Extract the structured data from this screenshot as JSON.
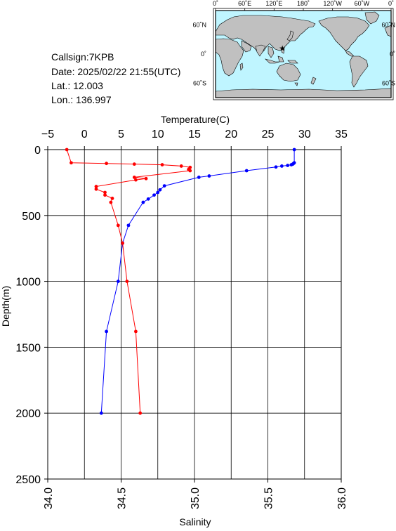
{
  "station": {
    "callsign_line": "Callsign:7KPB",
    "date_line": "Date:  2025/02/22 21:55(UTC)",
    "lat_line": "Lat.:   12.003",
    "lon_line": "Lon.:  136.997"
  },
  "map": {
    "lon_labels": [
      "0˚",
      "60˚E",
      "120˚E",
      "180˚",
      "120˚W",
      "60˚W",
      "0˚"
    ],
    "lat_labels": [
      "60˚N",
      "0˚",
      "60˚S"
    ],
    "marker": {
      "lon": 137.0,
      "lat": 12.0,
      "symbol": "★",
      "color": "#ff0000"
    },
    "ocean_color": "#bff5ff",
    "land_color": "#c0c0c0"
  },
  "chart_data": {
    "type": "line",
    "ylabel": "Depth(m)",
    "y_range": [
      0,
      2500
    ],
    "y_inverted": true,
    "y_ticks": [
      0,
      500,
      1000,
      1500,
      2000,
      2500
    ],
    "grid": true,
    "top_axis": {
      "label": "Temperature(C)",
      "range": [
        -5,
        35
      ],
      "ticks": [
        -5,
        0,
        5,
        10,
        15,
        20,
        25,
        30,
        35
      ]
    },
    "bottom_axis": {
      "label": "Salinity",
      "range": [
        34.0,
        36.0
      ],
      "ticks": [
        "34.0",
        "34.5",
        "35.0",
        "35.5",
        "36.0"
      ]
    },
    "series": [
      {
        "axis": "temperature",
        "color": "#0000ff",
        "points": [
          [
            28.6,
            0
          ],
          [
            28.6,
            100
          ],
          [
            28.5,
            105
          ],
          [
            28.4,
            110
          ],
          [
            28.2,
            115
          ],
          [
            27.7,
            120
          ],
          [
            26.9,
            125
          ],
          [
            26.1,
            132
          ],
          [
            22.1,
            160
          ],
          [
            17.0,
            200
          ],
          [
            15.6,
            210
          ],
          [
            10.9,
            275
          ],
          [
            10.3,
            305
          ],
          [
            10.0,
            325
          ],
          [
            9.5,
            345
          ],
          [
            8.7,
            375
          ],
          [
            8.0,
            400
          ],
          [
            6.0,
            575
          ],
          [
            5.2,
            710
          ],
          [
            4.6,
            1000
          ],
          [
            3.0,
            1380
          ],
          [
            2.3,
            2000
          ]
        ]
      },
      {
        "axis": "salinity",
        "color": "#ff0000",
        "points": [
          [
            34.13,
            0
          ],
          [
            34.16,
            100
          ],
          [
            34.4,
            105
          ],
          [
            34.59,
            110
          ],
          [
            34.78,
            115
          ],
          [
            34.91,
            125
          ],
          [
            34.97,
            135
          ],
          [
            34.96,
            150
          ],
          [
            34.97,
            160
          ],
          [
            34.59,
            210
          ],
          [
            34.67,
            220
          ],
          [
            34.6,
            230
          ],
          [
            34.33,
            280
          ],
          [
            34.33,
            300
          ],
          [
            34.39,
            325
          ],
          [
            34.39,
            345
          ],
          [
            34.44,
            370
          ],
          [
            34.43,
            400
          ],
          [
            34.48,
            575
          ],
          [
            34.51,
            710
          ],
          [
            34.54,
            1000
          ],
          [
            34.6,
            1380
          ],
          [
            34.63,
            2000
          ]
        ]
      }
    ]
  }
}
